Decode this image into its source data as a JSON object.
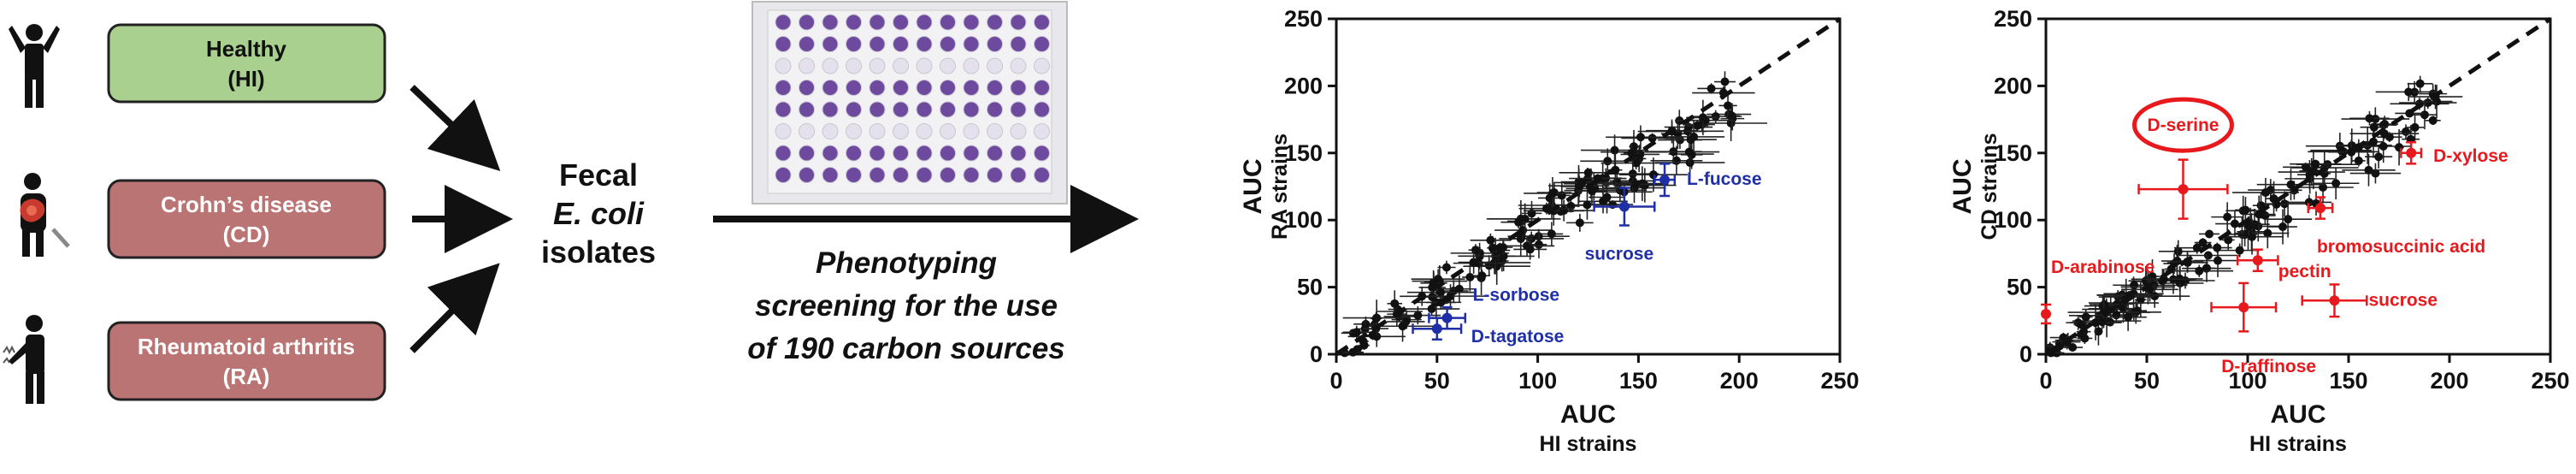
{
  "groups": [
    {
      "label_line1": "Healthy",
      "label_line2": "(HI)",
      "fill": "#a9d08e"
    },
    {
      "label_line1": "Crohn’s disease",
      "label_line2": "(CD)",
      "fill": "#b97473"
    },
    {
      "label_line1": "Rheumatoid arthritis",
      "label_line2": "(RA)",
      "fill": "#b97473"
    }
  ],
  "isolates": {
    "line1": "Fecal",
    "line2": "E. coli",
    "line3": "isolates"
  },
  "screening": {
    "line1": "Phenotyping",
    "line2": "screening for the use",
    "line3": "of 190 carbon sources"
  },
  "colors": {
    "blue": "#1f2fa8",
    "red": "#e8191c",
    "black": "#111111"
  },
  "chart_data": [
    {
      "type": "scatter",
      "xlabel": "AUC",
      "xlabel_sub": "HI strains",
      "ylabel": "AUC",
      "ylabel_sub": "RA strains",
      "xlim": [
        0,
        250
      ],
      "ylim": [
        0,
        250
      ],
      "xticks": [
        0,
        50,
        100,
        150,
        200,
        250
      ],
      "yticks": [
        0,
        50,
        100,
        150,
        200,
        250
      ],
      "diagonal": true,
      "highlighted": [
        {
          "label": "L-fucose",
          "x": 163,
          "y": 130,
          "xerr": 5,
          "yerr": 12,
          "color": "#1f2fa8"
        },
        {
          "label": "sucrose",
          "x": 143,
          "y": 110,
          "xerr": 15,
          "yerr": 14,
          "color": "#1f2fa8"
        },
        {
          "label": "L-sorbose",
          "x": 55,
          "y": 27,
          "xerr": 9,
          "yerr": 8,
          "color": "#1f2fa8"
        },
        {
          "label": "D-tagatose",
          "x": 50,
          "y": 19,
          "xerr": 12,
          "yerr": 8,
          "color": "#1f2fa8"
        }
      ]
    },
    {
      "type": "scatter",
      "xlabel": "AUC",
      "xlabel_sub": "HI strains",
      "ylabel": "AUC",
      "ylabel_sub": "CD strains",
      "xlim": [
        0,
        250
      ],
      "ylim": [
        0,
        250
      ],
      "xticks": [
        0,
        50,
        100,
        150,
        200,
        250
      ],
      "yticks": [
        0,
        50,
        100,
        150,
        200,
        250
      ],
      "diagonal": true,
      "highlighted": [
        {
          "label": "D-serine",
          "x": 68,
          "y": 123,
          "xerr": 22,
          "yerr": 22,
          "color": "#e8191c",
          "circled": true
        },
        {
          "label": "D-xylose",
          "x": 181,
          "y": 150,
          "xerr": 5,
          "yerr": 8,
          "color": "#e8191c"
        },
        {
          "label": "bromosuccinic acid",
          "x": 136,
          "y": 109,
          "xerr": 6,
          "yerr": 8,
          "color": "#e8191c"
        },
        {
          "label": "pectin",
          "x": 105,
          "y": 70,
          "xerr": 10,
          "yerr": 8,
          "color": "#e8191c"
        },
        {
          "label": "D-arabinose",
          "x": 0,
          "y": 30,
          "xerr": 0,
          "yerr": 7,
          "color": "#e8191c"
        },
        {
          "label": "sucrose",
          "x": 143,
          "y": 40,
          "xerr": 16,
          "yerr": 12,
          "color": "#e8191c"
        },
        {
          "label": "D-raffinose",
          "x": 98,
          "y": 35,
          "xerr": 16,
          "yerr": 18,
          "color": "#e8191c"
        }
      ]
    }
  ]
}
